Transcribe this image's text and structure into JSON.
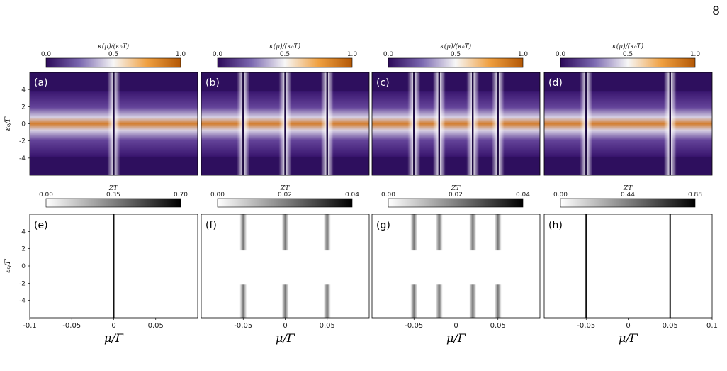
{
  "page": {
    "number": "8",
    "footer_text": ""
  },
  "chart_data": [
    {
      "id": "top-row",
      "type": "heatmap",
      "colormap": "PuOr",
      "colorbar": {
        "label": "κ(μ)/(κ₀T)",
        "ticks": [
          "0.0",
          "0.5",
          "1.0"
        ],
        "range": [
          0.0,
          1.0
        ]
      },
      "ylabel": "ε₀/Γ",
      "yticks": [
        "4",
        "2",
        "0",
        "-2",
        "-4"
      ],
      "ylim": [
        -6,
        6
      ],
      "panels": [
        {
          "label": "(a)",
          "resonances": [
            0.0
          ]
        },
        {
          "label": "(b)",
          "resonances": [
            -0.05,
            0.0,
            0.05
          ]
        },
        {
          "label": "(c)",
          "resonances": [
            -0.05,
            -0.02,
            0.02,
            0.05
          ]
        },
        {
          "label": "(d)",
          "resonances": [
            -0.05,
            0.05
          ]
        }
      ]
    },
    {
      "id": "bottom-row",
      "type": "heatmap",
      "colormap": "Greys",
      "xlabel": "μ/Γ",
      "ylabel": "ε₀/Γ",
      "yticks": [
        "4",
        "2",
        "0",
        "-2",
        "-4"
      ],
      "ylim": [
        -6,
        6
      ],
      "panels": [
        {
          "label": "(e)",
          "colorbar": {
            "label": "ZT",
            "ticks": [
              "0.00",
              "0.35",
              "0.70"
            ]
          },
          "xticks": [
            "-0.1",
            "-0.05",
            "0",
            "0.05"
          ],
          "xlim": [
            -0.1,
            0.1
          ],
          "resonances": [
            0.0
          ]
        },
        {
          "label": "(f)",
          "colorbar": {
            "label": "ZT",
            "ticks": [
              "0.00",
              "0.02",
              "0.04"
            ]
          },
          "xticks": [
            "-0.05",
            "0",
            "0.05"
          ],
          "xlim": [
            -0.1,
            0.1
          ],
          "resonances": [
            -0.05,
            0.0,
            0.05
          ]
        },
        {
          "label": "(g)",
          "colorbar": {
            "label": "ZT",
            "ticks": [
              "0.00",
              "0.02",
              "0.04"
            ]
          },
          "xticks": [
            "-0.05",
            "0",
            "0.05"
          ],
          "xlim": [
            -0.1,
            0.1
          ],
          "resonances": [
            -0.05,
            -0.02,
            0.02,
            0.05
          ]
        },
        {
          "label": "(h)",
          "colorbar": {
            "label": "ZT",
            "ticks": [
              "0.00",
              "0.44",
              "0.88"
            ]
          },
          "xticks": [
            "-0.05",
            "0",
            "0.05",
            "0.1"
          ],
          "xlim": [
            -0.1,
            0.1
          ],
          "resonances": [
            -0.05,
            0.05
          ]
        }
      ]
    }
  ]
}
